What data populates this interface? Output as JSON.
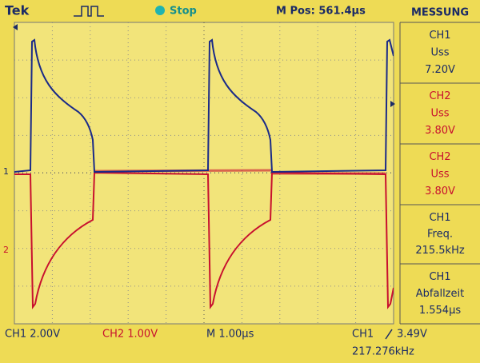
{
  "header": {
    "brand": "Tek",
    "status": "Stop",
    "position": "M Pos: 561.4µs"
  },
  "panel": {
    "title": "MESSUNG",
    "measurements": [
      {
        "channel": "CH1",
        "label": "Uss",
        "value": "7.20V"
      },
      {
        "channel": "CH2",
        "label": "Uss",
        "value": "3.80V"
      },
      {
        "channel": "CH2",
        "label": "Uss",
        "value": "3.80V"
      },
      {
        "channel": "CH1",
        "label": "Freq.",
        "value": "215.5kHz"
      },
      {
        "channel": "CH1",
        "label": "Abfallzeit",
        "value": "1.554µs"
      }
    ]
  },
  "markers": {
    "ch1": "1",
    "ch2": "2"
  },
  "footer": {
    "ch1_scale": "CH1  2.00V",
    "ch2_scale": "CH2  1.00V",
    "timebase": "M 1.00µs",
    "trigger_channel": "CH1",
    "trigger_level": "3.49V",
    "trigger_frequency": "217.276kHz"
  }
}
